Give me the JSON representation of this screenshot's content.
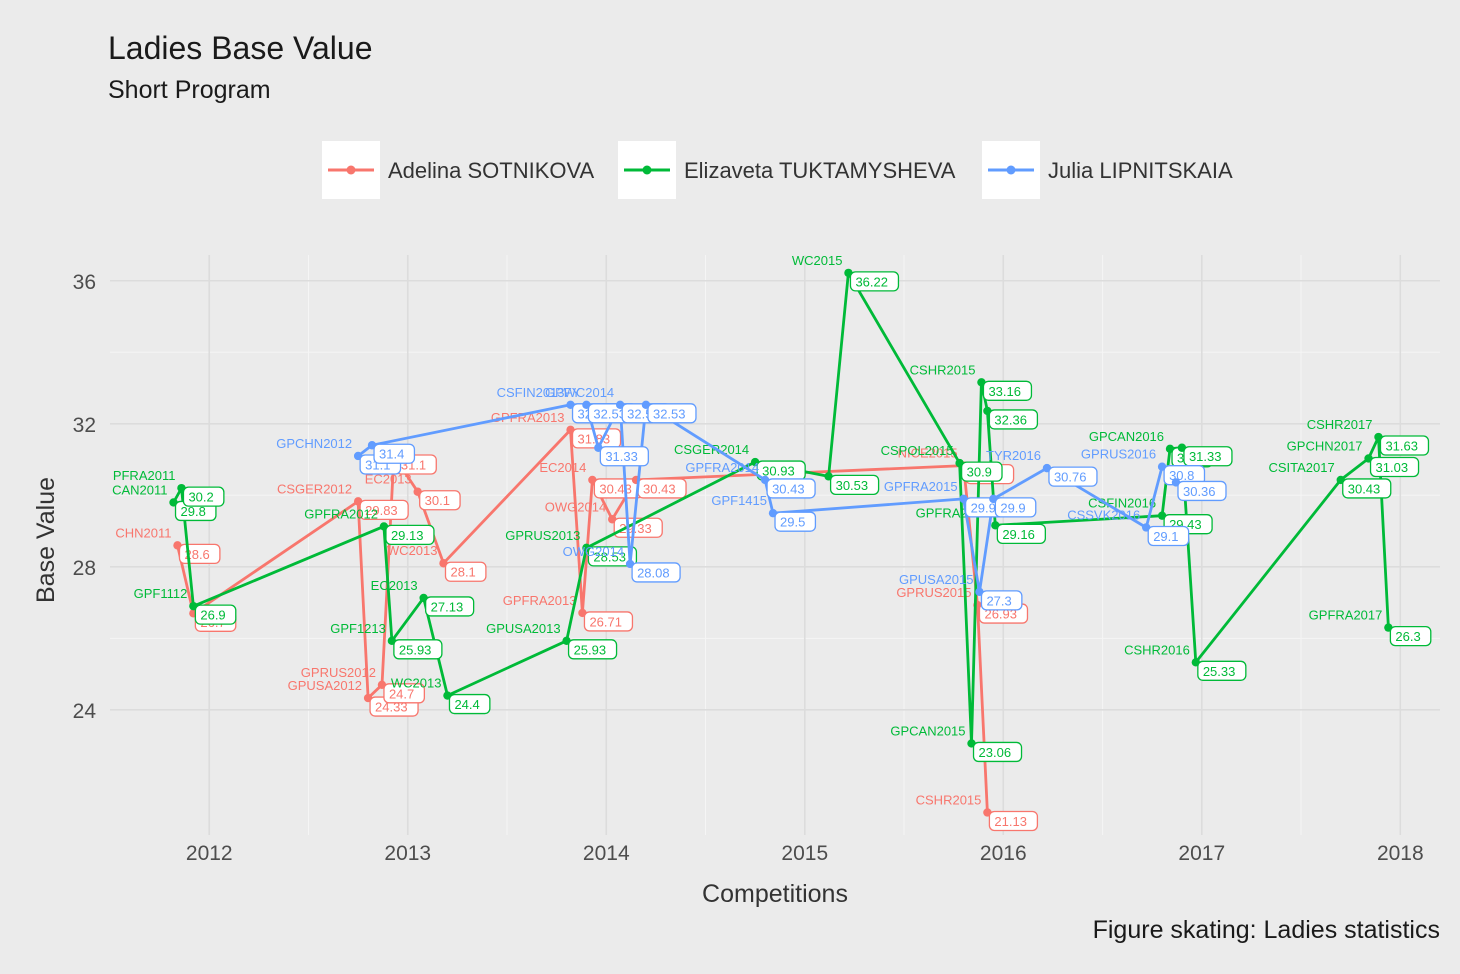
{
  "chart_data": {
    "type": "line",
    "title": "Ladies Base Value",
    "subtitle": "Short Program",
    "xlabel": "Competitions",
    "ylabel": "Base Value",
    "caption": "Figure skating: Ladies statistics",
    "xlim": [
      2011.5,
      2018.2
    ],
    "ylim": [
      20.5,
      37
    ],
    "x_ticks": [
      "2012",
      "2013",
      "2014",
      "2015",
      "2016",
      "2017",
      "2018"
    ],
    "y_ticks": [
      "24",
      "28",
      "32",
      "36"
    ],
    "legend_position": "top",
    "grid": true,
    "series": [
      {
        "name": "Adelina SOTNIKOVA",
        "color": "#f8766d",
        "points": [
          {
            "x": 2011.84,
            "y": 28.6,
            "label": "CHN2011",
            "value": "28.6"
          },
          {
            "x": 2011.92,
            "y": 26.7,
            "label": "",
            "value": "26.7"
          },
          {
            "x": 2012.75,
            "y": 29.83,
            "label": "CSGER2012",
            "value": "29.83"
          },
          {
            "x": 2012.8,
            "y": 24.33,
            "label": "GPUSA2012",
            "value": "24.33"
          },
          {
            "x": 2012.87,
            "y": 24.7,
            "label": "GPRUS2012",
            "value": "24.7"
          },
          {
            "x": 2012.93,
            "y": 31.1,
            "label": "",
            "value": "31.1"
          },
          {
            "x": 2013.05,
            "y": 30.1,
            "label": "EC2013",
            "value": "30.1"
          },
          {
            "x": 2013.18,
            "y": 28.1,
            "label": "WC2013",
            "value": "28.1"
          },
          {
            "x": 2013.82,
            "y": 31.83,
            "label": "GPFRA2013",
            "value": "31.83"
          },
          {
            "x": 2013.88,
            "y": 26.71,
            "label": "GPFRA2013",
            "value": "26.71"
          },
          {
            "x": 2013.93,
            "y": 30.43,
            "label": "EC2014",
            "value": "30.43"
          },
          {
            "x": 2014.03,
            "y": 29.33,
            "label": "OWG2014",
            "value": "29.33"
          },
          {
            "x": 2014.15,
            "y": 30.43,
            "label": "",
            "value": "30.43"
          },
          {
            "x": 2015.8,
            "y": 30.83,
            "label": "NICE2015",
            "value": "30.83"
          },
          {
            "x": 2015.87,
            "y": 26.93,
            "label": "GPRUS2015",
            "value": "26.93"
          },
          {
            "x": 2015.92,
            "y": 21.13,
            "label": "CSHR2015",
            "value": "21.13"
          }
        ]
      },
      {
        "name": "Elizaveta TUKTAMYSHEVA",
        "color": "#00ba38",
        "points": [
          {
            "x": 2011.82,
            "y": 29.8,
            "label": "CAN2011",
            "value": "29.8"
          },
          {
            "x": 2011.86,
            "y": 30.2,
            "label": "PFRA2011",
            "value": "30.2"
          },
          {
            "x": 2011.92,
            "y": 26.9,
            "label": "GPF1112",
            "value": "26.9"
          },
          {
            "x": 2012.88,
            "y": 29.13,
            "label": "GPFRA2012",
            "value": "29.13"
          },
          {
            "x": 2012.92,
            "y": 25.93,
            "label": "GPF1213",
            "value": "25.93"
          },
          {
            "x": 2013.08,
            "y": 27.13,
            "label": "EC2013",
            "value": "27.13"
          },
          {
            "x": 2013.2,
            "y": 24.4,
            "label": "WC2013",
            "value": "24.4"
          },
          {
            "x": 2013.8,
            "y": 25.93,
            "label": "GPUSA2013",
            "value": "25.93"
          },
          {
            "x": 2013.9,
            "y": 28.53,
            "label": "GPRUS2013",
            "value": "28.53"
          },
          {
            "x": 2014.75,
            "y": 30.93,
            "label": "CSGER2014",
            "value": "30.93"
          },
          {
            "x": 2015.12,
            "y": 30.53,
            "label": "",
            "value": "30.53"
          },
          {
            "x": 2015.22,
            "y": 36.22,
            "label": "WC2015",
            "value": "36.22"
          },
          {
            "x": 2015.78,
            "y": 30.9,
            "label": "CSPOL2015",
            "value": "30.9"
          },
          {
            "x": 2015.84,
            "y": 23.06,
            "label": "GPCAN2015",
            "value": "23.06"
          },
          {
            "x": 2015.89,
            "y": 33.16,
            "label": "CSHR2015",
            "value": "33.16"
          },
          {
            "x": 2015.92,
            "y": 32.36,
            "label": "",
            "value": "32.36"
          },
          {
            "x": 2015.96,
            "y": 29.16,
            "label": "GPFRA2015",
            "value": "29.16"
          },
          {
            "x": 2016.8,
            "y": 29.43,
            "label": "CSFIN2016",
            "value": "29.43"
          },
          {
            "x": 2016.84,
            "y": 31.3,
            "label": "GPCAN2016",
            "value": "31.3"
          },
          {
            "x": 2016.9,
            "y": 31.33,
            "label": "",
            "value": "31.33"
          },
          {
            "x": 2016.97,
            "y": 25.33,
            "label": "CSHR2016",
            "value": "25.33"
          },
          {
            "x": 2017.7,
            "y": 30.43,
            "label": "CSITA2017",
            "value": "30.43"
          },
          {
            "x": 2017.84,
            "y": 31.03,
            "label": "GPCHN2017",
            "value": "31.03"
          },
          {
            "x": 2017.89,
            "y": 31.63,
            "label": "CSHR2017",
            "value": "31.63"
          },
          {
            "x": 2017.94,
            "y": 26.3,
            "label": "GPFRA2017",
            "value": "26.3"
          }
        ]
      },
      {
        "name": "Julia LIPNITSKAIA",
        "color": "#619cff",
        "points": [
          {
            "x": 2012.75,
            "y": 31.1,
            "label": "GPCHN2012",
            "value": "31.1"
          },
          {
            "x": 2012.82,
            "y": 31.4,
            "label": "",
            "value": "31.4"
          },
          {
            "x": 2013.82,
            "y": 32.53,
            "label": "CSFIN2013",
            "value": "32.53"
          },
          {
            "x": 2013.9,
            "y": 32.53,
            "label": "GPFY",
            "value": "32.53"
          },
          {
            "x": 2013.96,
            "y": 31.33,
            "label": "",
            "value": "31.33"
          },
          {
            "x": 2014.07,
            "y": 32.53,
            "label": "WC2014",
            "value": "32.53"
          },
          {
            "x": 2014.12,
            "y": 28.08,
            "label": "OWG2014",
            "value": "28.08"
          },
          {
            "x": 2014.2,
            "y": 32.53,
            "label": "",
            "value": "32.53"
          },
          {
            "x": 2014.8,
            "y": 30.43,
            "label": "GPFRA2014",
            "value": "30.43"
          },
          {
            "x": 2014.84,
            "y": 29.5,
            "label": "GPF1415",
            "value": "29.5"
          },
          {
            "x": 2015.8,
            "y": 29.9,
            "label": "GPFRA2015",
            "value": "29.9"
          },
          {
            "x": 2015.88,
            "y": 27.3,
            "label": "GPUSA2015",
            "value": "27.3"
          },
          {
            "x": 2015.95,
            "y": 29.9,
            "label": "",
            "value": "29.9"
          },
          {
            "x": 2016.22,
            "y": 30.76,
            "label": "TYR2016",
            "value": "30.76"
          },
          {
            "x": 2016.72,
            "y": 29.1,
            "label": "CSSVK2016",
            "value": "29.1"
          },
          {
            "x": 2016.8,
            "y": 30.8,
            "label": "GPRUS2016",
            "value": "30.8"
          },
          {
            "x": 2016.87,
            "y": 30.36,
            "label": "",
            "value": "30.36"
          }
        ]
      }
    ]
  }
}
